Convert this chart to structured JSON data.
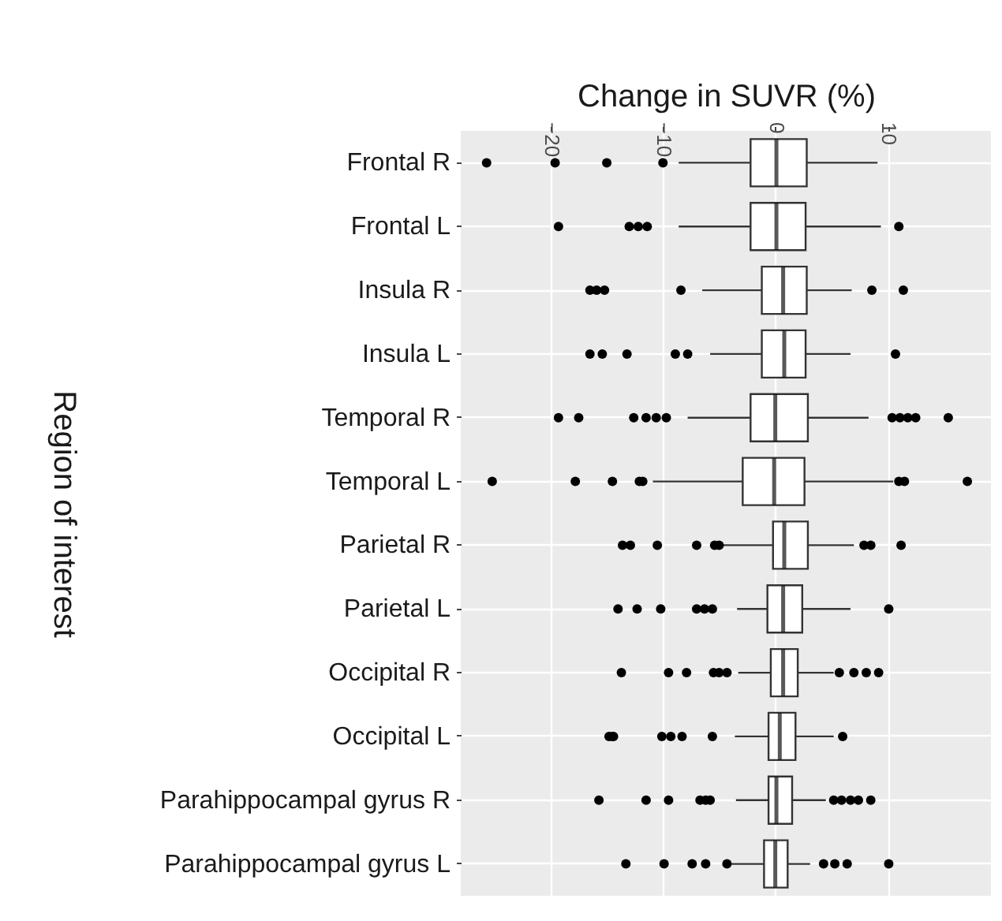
{
  "chart_data": {
    "type": "box",
    "orientation": "horizontal",
    "xlabel": "Change in SUVR (%)",
    "ylabel": "Region of interest",
    "categories": [
      "Frontal R",
      "Frontal L",
      "Insula R",
      "Insula L",
      "Temporal R",
      "Temporal L",
      "Parietal R",
      "Parietal L",
      "Occipital R",
      "Occipital L",
      "Parahippocampal gyrus R",
      "Parahippocampal gyrus L"
    ],
    "boxes": [
      {
        "low": -8.6,
        "q1": -2.2,
        "median": 0.1,
        "q3": 2.8,
        "high": 9.1,
        "outliers": [
          -25.7,
          -19.6,
          -15.0,
          -10.0
        ]
      },
      {
        "low": -8.6,
        "q1": -2.2,
        "median": 0.1,
        "q3": 2.7,
        "high": 9.4,
        "outliers": [
          -19.3,
          -13.0,
          -12.2,
          -11.4,
          11.0
        ]
      },
      {
        "low": -6.5,
        "q1": -1.2,
        "median": 0.7,
        "q3": 2.8,
        "high": 6.8,
        "outliers": [
          -16.5,
          -15.9,
          -15.2,
          -8.4,
          8.6,
          11.4
        ]
      },
      {
        "low": -5.8,
        "q1": -1.2,
        "median": 0.8,
        "q3": 2.7,
        "high": 6.7,
        "outliers": [
          -16.5,
          -15.4,
          -13.2,
          -8.9,
          -7.8,
          10.7
        ]
      },
      {
        "low": -7.8,
        "q1": -2.2,
        "median": 0.0,
        "q3": 2.9,
        "high": 8.3,
        "outliers": [
          -19.3,
          -17.5,
          -12.6,
          -11.5,
          -10.6,
          -9.7,
          10.4,
          11.1,
          11.8,
          12.5,
          15.4
        ]
      },
      {
        "low": -10.9,
        "q1": -2.9,
        "median": -0.1,
        "q3": 2.6,
        "high": 10.5,
        "outliers": [
          -25.2,
          -17.8,
          -14.5,
          -12.1,
          -11.8,
          11.0,
          11.5,
          17.1
        ]
      },
      {
        "low": -4.8,
        "q1": -0.2,
        "median": 0.8,
        "q3": 2.9,
        "high": 7.0,
        "outliers": [
          -13.6,
          -12.9,
          -10.5,
          -7.0,
          -5.4,
          -5.0,
          7.9,
          8.5,
          11.2
        ]
      },
      {
        "low": -3.4,
        "q1": -0.7,
        "median": 0.7,
        "q3": 2.4,
        "high": 6.7,
        "outliers": [
          -14.0,
          -12.3,
          -10.2,
          -7.0,
          -6.3,
          -5.6,
          10.1
        ]
      },
      {
        "low": -3.3,
        "q1": -0.4,
        "median": 0.7,
        "q3": 2.0,
        "high": 5.2,
        "outliers": [
          -13.7,
          -9.5,
          -7.9,
          -5.5,
          -5.0,
          -4.3,
          5.7,
          7.0,
          8.1,
          9.2
        ]
      },
      {
        "low": -3.6,
        "q1": -0.6,
        "median": 0.4,
        "q3": 1.8,
        "high": 5.2,
        "outliers": [
          -14.8,
          -14.5,
          -14.4,
          -10.1,
          -9.3,
          -8.3,
          -5.6,
          6.0
        ]
      },
      {
        "low": -3.5,
        "q1": -0.6,
        "median": 0.1,
        "q3": 1.5,
        "high": 4.5,
        "outliers": [
          -15.7,
          -11.5,
          -9.5,
          -6.7,
          -6.2,
          -5.8,
          5.2,
          5.9,
          6.7,
          7.4,
          8.5
        ]
      },
      {
        "low": -3.9,
        "q1": -1.0,
        "median": 0.0,
        "q3": 1.1,
        "high": 3.1,
        "outliers": [
          -13.3,
          -9.9,
          -7.4,
          -6.2,
          -4.3,
          4.3,
          5.3,
          6.4,
          10.1
        ]
      }
    ],
    "xlim": [
      -28,
      19.2
    ],
    "xticks": [
      -20,
      -10,
      0,
      10
    ],
    "grid": true
  }
}
